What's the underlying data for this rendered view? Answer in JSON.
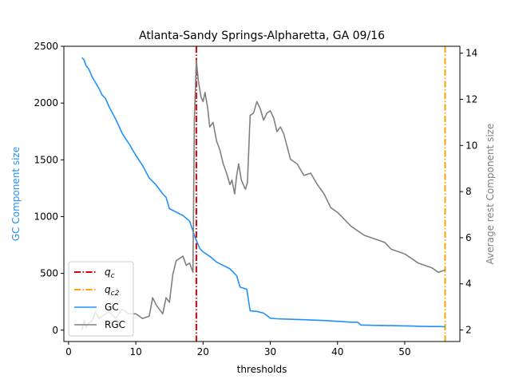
{
  "chart_data": {
    "type": "line",
    "title": "Atlanta-Sandy Springs-Alpharetta, GA 09/16",
    "xlabel": "thresholds",
    "ylabel_left": "GC Component size",
    "ylabel_right": "Average rest Component size",
    "xlim": [
      -0.7,
      58.2
    ],
    "ylim_left": [
      -100,
      2500
    ],
    "ylim_right": [
      1.5,
      14.3
    ],
    "x_ticks": [
      0,
      10,
      20,
      30,
      40,
      50
    ],
    "y_left_ticks": [
      0,
      500,
      1000,
      1500,
      2000,
      2500
    ],
    "y_right_ticks": [
      2,
      4,
      6,
      8,
      10,
      12,
      14
    ],
    "colors": {
      "GC": "#1e90ff",
      "RGC": "#808080",
      "qc": "#dd0000",
      "qc2": "#ffa500",
      "ylabel_left": "#1e90ff",
      "ylabel_right": "#808080"
    },
    "vlines": [
      {
        "name": "q_c",
        "label_main": "q",
        "label_sub": "c",
        "x": 19.0,
        "color": "#dd0000",
        "style": "dashdot"
      },
      {
        "name": "q_c2",
        "label_main": "q",
        "label_sub": "c2",
        "x": 56.0,
        "color": "#ffa500",
        "style": "dashdot"
      }
    ],
    "legend": {
      "position": "lower-left",
      "entries": [
        "q_c",
        "q_c2",
        "GC",
        "RGC"
      ]
    },
    "series": [
      {
        "name": "GC",
        "axis": "left",
        "x": [
          2,
          2.3,
          2.6,
          3,
          3.5,
          4,
          4.5,
          5,
          5.5,
          6,
          7,
          8,
          9,
          10,
          11,
          12,
          13,
          14,
          14.5,
          15,
          16,
          17,
          18,
          18.8,
          19,
          19.5,
          20,
          21,
          22,
          23,
          24,
          24.5,
          25,
          25.5,
          26,
          26.5,
          27,
          28,
          29,
          30,
          31,
          32,
          35,
          38,
          40,
          41,
          42,
          43,
          43.5,
          44,
          46,
          48,
          50,
          51,
          52,
          54,
          55,
          56
        ],
        "values": [
          2400,
          2380,
          2330,
          2300,
          2230,
          2180,
          2130,
          2070,
          2040,
          1970,
          1860,
          1730,
          1640,
          1540,
          1450,
          1340,
          1280,
          1200,
          1170,
          1070,
          1040,
          1010,
          960,
          820,
          790,
          720,
          690,
          650,
          600,
          570,
          540,
          510,
          480,
          380,
          370,
          360,
          170,
          165,
          150,
          105,
          100,
          98,
          92,
          85,
          78,
          74,
          70,
          70,
          45,
          45,
          42,
          40,
          38,
          36,
          34,
          32,
          32,
          30
        ]
      },
      {
        "name": "RGC",
        "axis": "right",
        "x": [
          2,
          2.3,
          2.6,
          3,
          3.5,
          4,
          4.5,
          5,
          6,
          7,
          8,
          9,
          10,
          11,
          12,
          12.5,
          13,
          14,
          14.5,
          15,
          15.5,
          16,
          17,
          17.5,
          18,
          18.5,
          18.7,
          19,
          19.3,
          19.7,
          20,
          20.3,
          20.7,
          21,
          21.5,
          22,
          22.5,
          23,
          23.5,
          24,
          24.3,
          24.7,
          25,
          25.3,
          25.7,
          26,
          26.3,
          26.6,
          27,
          27.5,
          28,
          28.5,
          29,
          29.5,
          30,
          30.5,
          31,
          31.5,
          32,
          33,
          34,
          35,
          36,
          37,
          38,
          39,
          40,
          41,
          42,
          43,
          44,
          45,
          46,
          47,
          48,
          49,
          50,
          51,
          52,
          53,
          54,
          55,
          56
        ],
        "values": [
          2.0,
          2.4,
          2.1,
          2.3,
          2.4,
          2.8,
          2.5,
          2.6,
          2.8,
          2.5,
          2.9,
          2.7,
          2.7,
          2.5,
          2.6,
          3.4,
          3.1,
          2.7,
          3.4,
          3.2,
          4.4,
          5.0,
          5.2,
          4.8,
          4.9,
          4.5,
          11.1,
          13.7,
          12.8,
          12.1,
          11.9,
          12.3,
          11.6,
          10.8,
          11.0,
          10.2,
          9.8,
          9.2,
          8.8,
          8.3,
          8.5,
          7.9,
          8.7,
          9.2,
          8.5,
          8.3,
          8.1,
          8.4,
          11.3,
          11.4,
          11.9,
          11.6,
          11.1,
          11.4,
          11.5,
          11.2,
          10.6,
          10.8,
          10.5,
          9.4,
          9.2,
          8.7,
          8.8,
          8.3,
          7.9,
          7.3,
          7.1,
          6.8,
          6.5,
          6.3,
          6.1,
          6.0,
          5.9,
          5.8,
          5.5,
          5.4,
          5.3,
          5.1,
          4.9,
          4.8,
          4.7,
          4.5,
          4.6
        ]
      }
    ]
  }
}
